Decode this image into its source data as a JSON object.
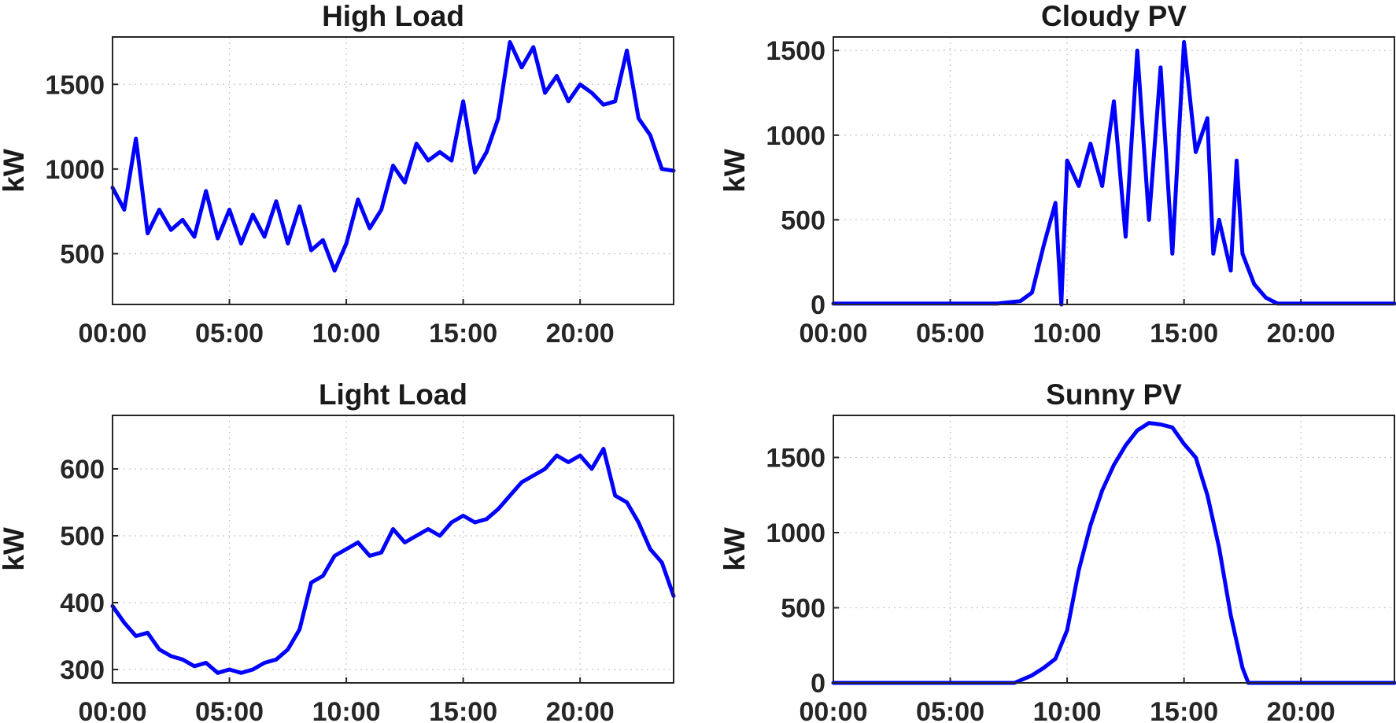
{
  "chart_data": [
    {
      "type": "line",
      "title": "High Load",
      "ylabel": "kW",
      "xlabel": "",
      "xlim_hours": [
        0,
        24
      ],
      "ylim": [
        200,
        1780
      ],
      "xticks": [
        "00:00",
        "05:00",
        "10:00",
        "15:00",
        "20:00"
      ],
      "yticks": [
        500,
        1000,
        1500
      ],
      "grid": true,
      "color": "#0000ff",
      "series": [
        {
          "x": [
            "00:00",
            "00:30",
            "01:00",
            "01:30",
            "02:00",
            "02:30",
            "03:00",
            "03:30",
            "04:00",
            "04:30",
            "05:00",
            "05:30",
            "06:00",
            "06:30",
            "07:00",
            "07:30",
            "08:00",
            "08:30",
            "09:00",
            "09:30",
            "10:00",
            "10:30",
            "11:00",
            "11:30",
            "12:00",
            "12:30",
            "13:00",
            "13:30",
            "14:00",
            "14:30",
            "15:00",
            "15:30",
            "16:00",
            "16:30",
            "17:00",
            "17:30",
            "18:00",
            "18:30",
            "19:00",
            "19:30",
            "20:00",
            "20:30",
            "21:00",
            "21:30",
            "22:00",
            "22:30",
            "23:00",
            "23:30",
            "24:00"
          ],
          "values": [
            890,
            760,
            1180,
            620,
            760,
            640,
            700,
            600,
            870,
            590,
            760,
            560,
            730,
            600,
            810,
            560,
            780,
            520,
            580,
            400,
            560,
            820,
            650,
            760,
            1020,
            920,
            1150,
            1050,
            1100,
            1050,
            1400,
            980,
            1100,
            1300,
            1750,
            1600,
            1720,
            1450,
            1550,
            1400,
            1500,
            1450,
            1380,
            1400,
            1700,
            1300,
            1200,
            1000,
            990
          ]
        }
      ]
    },
    {
      "type": "line",
      "title": "Cloudy PV",
      "ylabel": "kW",
      "xlabel": "",
      "xlim_hours": [
        0,
        24
      ],
      "ylim": [
        0,
        1580
      ],
      "xticks": [
        "00:00",
        "05:00",
        "10:00",
        "15:00",
        "20:00"
      ],
      "yticks": [
        0,
        500,
        1000,
        1500
      ],
      "grid": true,
      "color": "#0000ff",
      "series": [
        {
          "x": [
            "00:00",
            "01:00",
            "02:00",
            "03:00",
            "04:00",
            "05:00",
            "06:00",
            "07:00",
            "08:00",
            "08:30",
            "09:00",
            "09:30",
            "09:45",
            "10:00",
            "10:30",
            "11:00",
            "11:30",
            "12:00",
            "12:30",
            "13:00",
            "13:30",
            "14:00",
            "14:30",
            "15:00",
            "15:30",
            "16:00",
            "16:15",
            "16:30",
            "17:00",
            "17:15",
            "17:30",
            "18:00",
            "18:30",
            "19:00",
            "20:00",
            "21:00",
            "22:00",
            "23:00",
            "24:00"
          ],
          "values": [
            5,
            5,
            5,
            5,
            5,
            5,
            5,
            5,
            20,
            70,
            350,
            600,
            0,
            850,
            700,
            950,
            700,
            1200,
            400,
            1500,
            500,
            1400,
            300,
            1550,
            900,
            1100,
            300,
            500,
            200,
            850,
            300,
            120,
            40,
            5,
            5,
            5,
            5,
            5,
            5
          ]
        }
      ]
    },
    {
      "type": "line",
      "title": "Light Load",
      "ylabel": "kW",
      "xlabel": "",
      "xlim_hours": [
        0,
        24
      ],
      "ylim": [
        280,
        680
      ],
      "xticks": [
        "00:00",
        "05:00",
        "10:00",
        "15:00",
        "20:00"
      ],
      "yticks": [
        300,
        400,
        500,
        600
      ],
      "grid": true,
      "color": "#0000ff",
      "series": [
        {
          "x": [
            "00:00",
            "00:30",
            "01:00",
            "01:30",
            "02:00",
            "02:30",
            "03:00",
            "03:30",
            "04:00",
            "04:30",
            "05:00",
            "05:30",
            "06:00",
            "06:30",
            "07:00",
            "07:30",
            "08:00",
            "08:30",
            "09:00",
            "09:30",
            "10:00",
            "10:30",
            "11:00",
            "11:30",
            "12:00",
            "12:30",
            "13:00",
            "13:30",
            "14:00",
            "14:30",
            "15:00",
            "15:30",
            "16:00",
            "16:30",
            "17:00",
            "17:30",
            "18:00",
            "18:30",
            "19:00",
            "19:30",
            "20:00",
            "20:30",
            "21:00",
            "21:30",
            "22:00",
            "22:30",
            "23:00",
            "23:30",
            "24:00"
          ],
          "values": [
            395,
            370,
            350,
            355,
            330,
            320,
            315,
            305,
            310,
            295,
            300,
            295,
            300,
            310,
            315,
            330,
            360,
            430,
            440,
            470,
            480,
            490,
            470,
            475,
            510,
            490,
            500,
            510,
            500,
            520,
            530,
            520,
            525,
            540,
            560,
            580,
            590,
            600,
            620,
            610,
            620,
            600,
            630,
            560,
            550,
            520,
            480,
            460,
            410
          ]
        }
      ]
    },
    {
      "type": "line",
      "title": "Sunny PV",
      "ylabel": "kW",
      "xlabel": "",
      "xlim_hours": [
        0,
        24
      ],
      "ylim": [
        0,
        1780
      ],
      "xticks": [
        "00:00",
        "05:00",
        "10:00",
        "15:00",
        "20:00"
      ],
      "yticks": [
        0,
        500,
        1000,
        1500
      ],
      "grid": true,
      "color": "#0000ff",
      "series": [
        {
          "x": [
            "00:00",
            "02:00",
            "04:00",
            "06:00",
            "07:45",
            "08:30",
            "09:00",
            "09:30",
            "10:00",
            "10:30",
            "11:00",
            "11:30",
            "12:00",
            "12:30",
            "13:00",
            "13:30",
            "14:00",
            "14:30",
            "15:00",
            "15:30",
            "16:00",
            "16:30",
            "17:00",
            "17:30",
            "17:45",
            "18:00",
            "20:00",
            "22:00",
            "24:00"
          ],
          "values": [
            0,
            0,
            0,
            0,
            0,
            50,
            100,
            160,
            350,
            750,
            1050,
            1280,
            1450,
            1580,
            1680,
            1730,
            1720,
            1700,
            1590,
            1500,
            1250,
            900,
            450,
            100,
            0,
            0,
            0,
            0,
            0
          ]
        }
      ]
    }
  ]
}
